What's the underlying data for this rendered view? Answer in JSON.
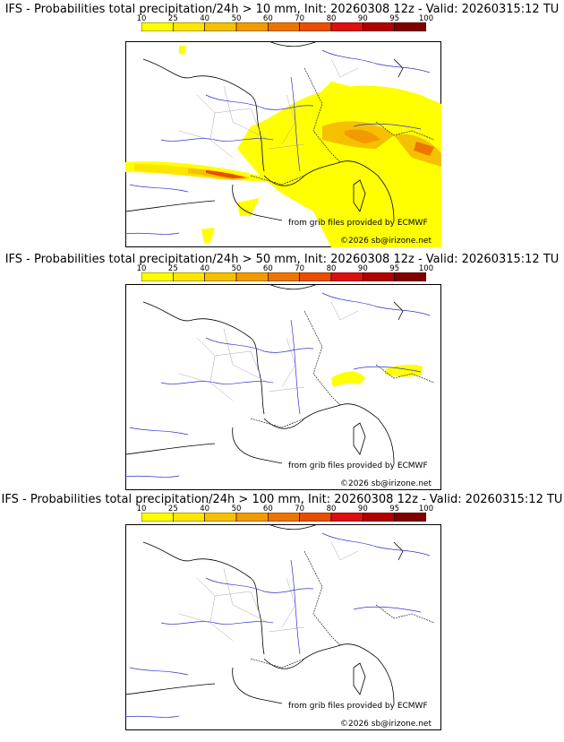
{
  "colorbar": {
    "ticks": [
      "10",
      "25",
      "40",
      "50",
      "60",
      "70",
      "80",
      "90",
      "95",
      "100"
    ],
    "colors": [
      "#ffff00",
      "#fce600",
      "#f5c000",
      "#f29a00",
      "#ee7400",
      "#ea4e00",
      "#dc1010",
      "#b00000",
      "#800000",
      "#4a0000"
    ]
  },
  "credits": {
    "source": "from grib files provided by ECMWF",
    "copyright": "©2026 sb@irizone.net"
  },
  "panels": [
    {
      "title": "IFS - Probabilities total precipitation/24h > 10 mm, Init: 20260308 12z - Valid: 20260315:12 TU",
      "threshold_mm": 10
    },
    {
      "title": "IFS - Probabilities total precipitation/24h > 50 mm, Init: 20260308 12z - Valid: 20260315:12 TU",
      "threshold_mm": 50
    },
    {
      "title": "IFS - Probabilities total precipitation/24h > 100 mm, Init: 20260308 12z - Valid: 20260315:12 TU",
      "threshold_mm": 100
    }
  ]
}
